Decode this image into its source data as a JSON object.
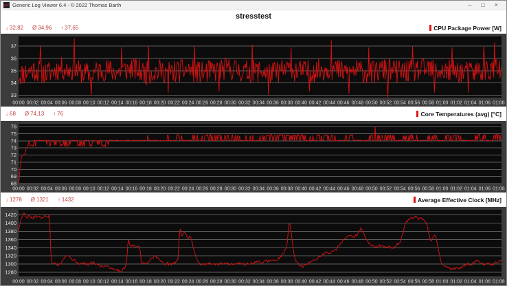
{
  "window": {
    "title": "Generic Log Viewer 6.4 - © 2022 Thomas Barth",
    "controls": {
      "minimize": "–",
      "maximize": "□",
      "close": "×"
    }
  },
  "header": {
    "title": "stresstest"
  },
  "glyphs": {
    "min": "↓",
    "avg": "Ø",
    "max": "↑"
  },
  "colors": {
    "stats_red": "#c0403e",
    "line_red": "#cc1212",
    "legend_bar": "#e01212",
    "panel": "#3c3c3c",
    "plot_bg": "#0c0c0c",
    "grid": "#5f5f5f",
    "tick_text": "#e8e8e8"
  },
  "charts": [
    {
      "label": "CPU Package Power [W]",
      "stats_display": {
        "min": "32,82",
        "avg": "34,96",
        "max": "37,65"
      }
    },
    {
      "label": "Core Temperatures (avg) [°C]",
      "stats_display": {
        "min": "68",
        "avg": "74,13",
        "max": "76"
      }
    },
    {
      "label": "Average Effective Clock [MHz]",
      "stats_display": {
        "min": "1278",
        "avg": "1321",
        "max": "1432"
      }
    }
  ],
  "chart_data": [
    {
      "type": "line",
      "title": "CPU Package Power [W]",
      "stats": {
        "min": 32.82,
        "avg": 34.96,
        "max": 37.65
      },
      "x_max": 68.4,
      "x_tick_step": 2,
      "x_tick_labels": [
        "00:00",
        "00:02",
        "00:04",
        "00:06",
        "00:08",
        "00:10",
        "00:12",
        "00:14",
        "00:16",
        "00:18",
        "00:20",
        "00:22",
        "00:24",
        "00:26",
        "00:28",
        "00:30",
        "00:32",
        "00:34",
        "00:36",
        "00:38",
        "00:40",
        "00:42",
        "00:44",
        "00:46",
        "00:48",
        "00:50",
        "00:52",
        "00:54",
        "00:56",
        "00:58",
        "01:00",
        "01:02",
        "01:04",
        "01:06",
        "01:08"
      ],
      "y_ticks": [
        33,
        34,
        35,
        36,
        37
      ],
      "y_min": 32.8,
      "y_max": 37.8,
      "grid": true,
      "legend_position": "top-right",
      "seed": 11,
      "sample_step_min": 0.1,
      "noise_amp": 0.95,
      "envelope": [
        [
          0,
          34.6
        ],
        [
          2,
          35.1
        ],
        [
          4,
          34.8
        ],
        [
          6,
          35.2
        ],
        [
          8,
          35.0
        ],
        [
          10,
          34.7
        ],
        [
          12,
          35.1
        ],
        [
          14,
          34.9
        ],
        [
          16,
          35.2
        ],
        [
          18,
          34.8
        ],
        [
          20,
          35.0
        ],
        [
          22,
          34.9
        ],
        [
          24,
          35.1
        ],
        [
          26,
          34.8
        ],
        [
          28,
          35.0
        ],
        [
          30,
          35.2
        ],
        [
          32,
          34.9
        ],
        [
          34,
          35.0
        ],
        [
          36,
          34.8
        ],
        [
          38,
          35.1
        ],
        [
          40,
          34.9
        ],
        [
          42,
          35.0
        ],
        [
          44,
          35.2
        ],
        [
          46,
          34.9
        ],
        [
          48,
          35.0
        ],
        [
          50,
          34.8
        ],
        [
          52,
          35.1
        ],
        [
          54,
          34.9
        ],
        [
          56,
          35.0
        ],
        [
          58,
          35.1
        ],
        [
          60,
          34.9
        ],
        [
          62,
          35.0
        ],
        [
          64,
          34.8
        ],
        [
          66,
          35.1
        ],
        [
          68.4,
          35.0
        ]
      ],
      "bursts": [],
      "spikes": [
        [
          3.1,
          37.1
        ],
        [
          7.9,
          37.65
        ],
        [
          10.3,
          33.0
        ],
        [
          14.6,
          36.9
        ],
        [
          18.4,
          37.0
        ],
        [
          21.2,
          33.2
        ],
        [
          24.9,
          37.0
        ],
        [
          28.4,
          33.3
        ],
        [
          33.1,
          37.15
        ],
        [
          35.4,
          33.0
        ],
        [
          38.6,
          36.9
        ],
        [
          41.2,
          33.3
        ],
        [
          44.3,
          37.5
        ],
        [
          46.8,
          33.1
        ],
        [
          49.6,
          36.9
        ],
        [
          52.3,
          32.82
        ],
        [
          55.8,
          37.0
        ],
        [
          58.9,
          33.2
        ],
        [
          61.4,
          36.9
        ],
        [
          63.7,
          33.2
        ],
        [
          65.9,
          37.0
        ],
        [
          67.4,
          37.3
        ]
      ]
    },
    {
      "type": "line",
      "title": "Core Temperatures (avg) [°C]",
      "stats": {
        "min": 68,
        "avg": 74.13,
        "max": 76
      },
      "x_max": 68.4,
      "x_tick_step": 2,
      "x_tick_labels": [
        "00:00",
        "00:02",
        "00:04",
        "00:06",
        "00:08",
        "00:10",
        "00:12",
        "00:14",
        "00:16",
        "00:18",
        "00:20",
        "00:22",
        "00:24",
        "00:26",
        "00:28",
        "00:30",
        "00:32",
        "00:34",
        "00:36",
        "00:38",
        "00:40",
        "00:42",
        "00:44",
        "00:46",
        "00:48",
        "00:50",
        "00:52",
        "00:54",
        "00:56",
        "00:58",
        "01:00",
        "01:02",
        "01:04",
        "01:06",
        "01:08"
      ],
      "y_ticks": [
        68,
        69,
        70,
        71,
        72,
        73,
        74,
        75,
        76
      ],
      "y_min": 68,
      "y_max": 76.4,
      "grid": true,
      "legend_position": "top-right",
      "seed": 23,
      "sample_step_min": 0.1,
      "noise_amp": 0.05,
      "envelope": [
        [
          0,
          68
        ],
        [
          0.08,
          68.3
        ],
        [
          0.15,
          69.6
        ],
        [
          0.25,
          70.6
        ],
        [
          0.4,
          71.6
        ],
        [
          0.55,
          72.0
        ],
        [
          0.95,
          72.1
        ],
        [
          1.05,
          73.0
        ],
        [
          1.3,
          73.1
        ],
        [
          1.45,
          74.05
        ],
        [
          68.4,
          74.05
        ]
      ],
      "bursts": [
        [
          1.6,
          2.7,
          73.35,
          0.55,
          0.15
        ],
        [
          4.0,
          4.5,
          73.35,
          0.55,
          0.15
        ],
        [
          4.9,
          5.4,
          73.35,
          0.55,
          0.15
        ],
        [
          5.8,
          7.3,
          73.35,
          0.5,
          0.15
        ],
        [
          8.3,
          9.3,
          73.35,
          0.55,
          0.15
        ],
        [
          9.9,
          10.5,
          73.35,
          0.55,
          0.15
        ],
        [
          11.1,
          12.7,
          73.35,
          0.5,
          0.15
        ],
        [
          18.2,
          18.6,
          74.8,
          0.5,
          0.1
        ],
        [
          19.5,
          19.8,
          74.8,
          0.5,
          0.1
        ],
        [
          21.0,
          21.3,
          74.8,
          0.5,
          0.1
        ],
        [
          22.4,
          23.3,
          74.8,
          0.5,
          0.1
        ],
        [
          24.6,
          25.5,
          74.8,
          0.5,
          0.1
        ],
        [
          26.0,
          33.4,
          74.8,
          0.45,
          0.1
        ],
        [
          34.2,
          40.7,
          74.8,
          0.55,
          0.1
        ],
        [
          41.3,
          44.9,
          74.8,
          0.5,
          0.1
        ],
        [
          45.7,
          47.5,
          74.8,
          0.5,
          0.1
        ],
        [
          48.5,
          50.2,
          74.8,
          0.45,
          0.1
        ],
        [
          50.9,
          53.3,
          74.8,
          0.5,
          0.1
        ],
        [
          54.5,
          56.5,
          74.8,
          0.5,
          0.1
        ],
        [
          57.9,
          59.5,
          74.8,
          0.45,
          0.1
        ],
        [
          60.3,
          62.7,
          74.8,
          0.5,
          0.1
        ],
        [
          64.7,
          66.3,
          74.8,
          0.5,
          0.1
        ],
        [
          66.9,
          68.4,
          74.8,
          0.5,
          0.1
        ]
      ],
      "spikes": [
        [
          50.45,
          76
        ]
      ]
    },
    {
      "type": "line",
      "title": "Average Effective Clock [MHz]",
      "stats": {
        "min": 1278,
        "avg": 1321,
        "max": 1432
      },
      "x_max": 68.4,
      "x_tick_step": 2,
      "x_tick_labels": [
        "00:00",
        "00:02",
        "00:04",
        "00:06",
        "00:08",
        "00:10",
        "00:12",
        "00:14",
        "00:16",
        "00:18",
        "00:20",
        "00:22",
        "00:24",
        "00:26",
        "00:28",
        "00:30",
        "00:32",
        "00:34",
        "00:36",
        "00:38",
        "00:40",
        "00:42",
        "00:44",
        "00:46",
        "00:48",
        "00:50",
        "00:52",
        "00:54",
        "00:56",
        "00:58",
        "01:00",
        "01:02",
        "01:04",
        "01:06",
        "01:08"
      ],
      "y_ticks": [
        1280,
        1300,
        1320,
        1340,
        1360,
        1380,
        1400,
        1420
      ],
      "y_min": 1270,
      "y_max": 1433,
      "grid": true,
      "legend_position": "top-right",
      "seed": 5,
      "sample_step_min": 0.12,
      "noise_amp": 3,
      "envelope": [
        [
          0,
          1382
        ],
        [
          0.2,
          1398
        ],
        [
          0.5,
          1415
        ],
        [
          0.8,
          1428
        ],
        [
          1.1,
          1412
        ],
        [
          1.4,
          1420
        ],
        [
          1.7,
          1415
        ],
        [
          2.0,
          1410
        ],
        [
          2.3,
          1418
        ],
        [
          2.6,
          1413
        ],
        [
          2.9,
          1417
        ],
        [
          3.2,
          1411
        ],
        [
          3.5,
          1416
        ],
        [
          3.8,
          1419
        ],
        [
          4.1,
          1413
        ],
        [
          4.35,
          1420
        ],
        [
          4.5,
          1372
        ],
        [
          4.6,
          1308
        ],
        [
          4.8,
          1300
        ],
        [
          5.2,
          1303
        ],
        [
          5.6,
          1298
        ],
        [
          6.0,
          1302
        ],
        [
          6.4,
          1315
        ],
        [
          6.8,
          1322
        ],
        [
          7.2,
          1318
        ],
        [
          7.6,
          1312
        ],
        [
          8.0,
          1308
        ],
        [
          8.4,
          1303
        ],
        [
          8.8,
          1300
        ],
        [
          9.2,
          1303
        ],
        [
          9.6,
          1300
        ],
        [
          10.0,
          1298
        ],
        [
          10.4,
          1304
        ],
        [
          10.8,
          1302
        ],
        [
          11.2,
          1298
        ],
        [
          11.6,
          1296
        ],
        [
          12.0,
          1294
        ],
        [
          12.5,
          1297
        ],
        [
          13.0,
          1291
        ],
        [
          13.5,
          1288
        ],
        [
          14.0,
          1286
        ],
        [
          14.5,
          1282
        ],
        [
          15.0,
          1291
        ],
        [
          15.3,
          1304
        ],
        [
          15.55,
          1365
        ],
        [
          15.8,
          1342
        ],
        [
          16.1,
          1348
        ],
        [
          16.5,
          1341
        ],
        [
          16.9,
          1345
        ],
        [
          17.2,
          1338
        ],
        [
          17.4,
          1305
        ],
        [
          17.8,
          1300
        ],
        [
          18.2,
          1304
        ],
        [
          18.6,
          1310
        ],
        [
          19.0,
          1317
        ],
        [
          19.4,
          1320
        ],
        [
          19.8,
          1314
        ],
        [
          20.2,
          1306
        ],
        [
          20.6,
          1300
        ],
        [
          21.0,
          1303
        ],
        [
          21.4,
          1299
        ],
        [
          21.8,
          1301
        ],
        [
          22.2,
          1304
        ],
        [
          22.6,
          1312
        ],
        [
          22.85,
          1393
        ],
        [
          23.1,
          1368
        ],
        [
          23.4,
          1378
        ],
        [
          23.7,
          1371
        ],
        [
          24.0,
          1364
        ],
        [
          24.3,
          1371
        ],
        [
          24.6,
          1352
        ],
        [
          24.9,
          1330
        ],
        [
          25.2,
          1316
        ],
        [
          25.5,
          1303
        ],
        [
          26,
          1298
        ],
        [
          27,
          1301
        ],
        [
          28,
          1299
        ],
        [
          29,
          1302
        ],
        [
          30,
          1300
        ],
        [
          31,
          1303
        ],
        [
          32,
          1299
        ],
        [
          33,
          1302
        ],
        [
          34,
          1306
        ],
        [
          34.5,
          1303
        ],
        [
          35,
          1309
        ],
        [
          35.5,
          1306
        ],
        [
          36,
          1311
        ],
        [
          36.5,
          1308
        ],
        [
          37,
          1316
        ],
        [
          37.5,
          1326
        ],
        [
          38,
          1342
        ],
        [
          38.3,
          1401
        ],
        [
          38.6,
          1385
        ],
        [
          38.85,
          1340
        ],
        [
          39.1,
          1315
        ],
        [
          39.4,
          1303
        ],
        [
          39.8,
          1297
        ],
        [
          40.2,
          1294
        ],
        [
          40.6,
          1298
        ],
        [
          41,
          1301
        ],
        [
          41.5,
          1306
        ],
        [
          42,
          1311
        ],
        [
          42.5,
          1317
        ],
        [
          43,
          1322
        ],
        [
          43.5,
          1329
        ],
        [
          44,
          1326
        ],
        [
          44.5,
          1331
        ],
        [
          45,
          1336
        ],
        [
          45.5,
          1349
        ],
        [
          46,
          1359
        ],
        [
          46.5,
          1366
        ],
        [
          47,
          1371
        ],
        [
          47.5,
          1367
        ],
        [
          48,
          1373
        ],
        [
          48.5,
          1386
        ],
        [
          48.8,
          1377
        ],
        [
          49.2,
          1362
        ],
        [
          49.6,
          1352
        ],
        [
          50,
          1346
        ],
        [
          50.5,
          1341
        ],
        [
          51,
          1344
        ],
        [
          51.5,
          1347
        ],
        [
          52,
          1341
        ],
        [
          52.5,
          1343
        ],
        [
          53,
          1339
        ],
        [
          53.5,
          1346
        ],
        [
          54,
          1352
        ],
        [
          54.3,
          1366
        ],
        [
          54.7,
          1396
        ],
        [
          55,
          1406
        ],
        [
          55.4,
          1409
        ],
        [
          55.8,
          1413
        ],
        [
          56.2,
          1416
        ],
        [
          56.6,
          1410
        ],
        [
          57,
          1413
        ],
        [
          57.4,
          1406
        ],
        [
          57.8,
          1399
        ],
        [
          58.1,
          1372
        ],
        [
          58.4,
          1357
        ],
        [
          58.7,
          1362
        ],
        [
          59,
          1373
        ],
        [
          59.3,
          1352
        ],
        [
          59.6,
          1322
        ],
        [
          59.9,
          1303
        ],
        [
          60.3,
          1296
        ],
        [
          60.7,
          1292
        ],
        [
          61.1,
          1289
        ],
        [
          61.5,
          1287
        ],
        [
          62,
          1292
        ],
        [
          62.5,
          1289
        ],
        [
          63,
          1295
        ],
        [
          63.5,
          1301
        ],
        [
          64,
          1297
        ],
        [
          64.5,
          1304
        ],
        [
          65,
          1308
        ],
        [
          65.5,
          1301
        ],
        [
          66,
          1299
        ],
        [
          66.5,
          1305
        ],
        [
          67,
          1297
        ],
        [
          67.5,
          1302
        ],
        [
          68,
          1307
        ],
        [
          68.4,
          1311
        ]
      ],
      "bursts": [],
      "spikes": []
    }
  ]
}
